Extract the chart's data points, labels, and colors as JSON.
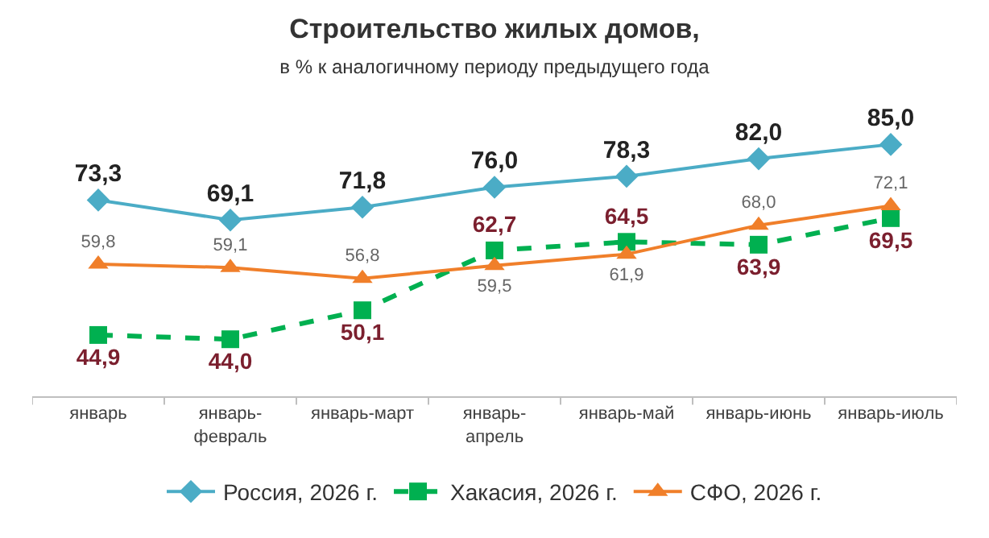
{
  "chart_data": {
    "type": "line",
    "title": "Строительство жилых домов,",
    "subtitle": "в % к аналогичному периоду предыдущего года",
    "categories": [
      "январь",
      "январь-февраль",
      "январь-март",
      "январь-апрель",
      "январь-май",
      "январь-июнь",
      "январь-июль"
    ],
    "series": [
      {
        "name": "Россия, 2026 г.",
        "color": "#4bacc6",
        "marker": "diamond",
        "line_style": "solid",
        "values": [
          73.3,
          69.1,
          71.8,
          76.0,
          78.3,
          82.0,
          85.0
        ],
        "value_labels": [
          "73,3",
          "69,1",
          "71,8",
          "76,0",
          "78,3",
          "82,0",
          "85,0"
        ]
      },
      {
        "name": "Хакасия, 2026 г.",
        "color": "#00b050",
        "marker": "square",
        "line_style": "dashed",
        "values": [
          44.9,
          44.0,
          50.1,
          62.7,
          64.5,
          63.9,
          69.5
        ],
        "value_labels": [
          "44,9",
          "44,0",
          "50,1",
          "62,7",
          "64,5",
          "63,9",
          "69,5"
        ]
      },
      {
        "name": "СФО, 2026 г.",
        "color": "#f07f2a",
        "marker": "triangle",
        "line_style": "solid",
        "values": [
          59.8,
          59.1,
          56.8,
          59.5,
          61.9,
          68.0,
          72.1
        ],
        "value_labels": [
          "59,8",
          "59,1",
          "56,8",
          "59,5",
          "61,9",
          "68,0",
          "72,1"
        ]
      }
    ],
    "tick_labels": "x",
    "legend": "bottom"
  }
}
